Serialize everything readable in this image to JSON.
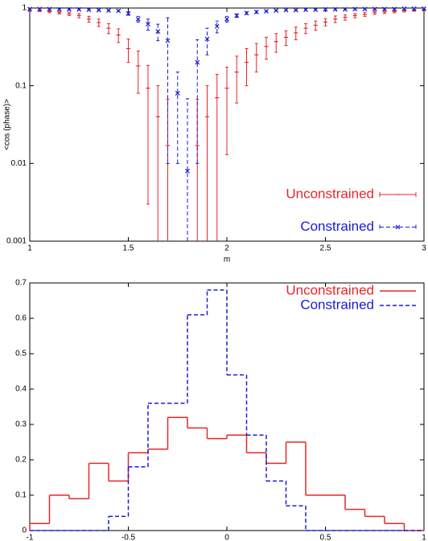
{
  "chart_data": [
    {
      "type": "errorbar",
      "log_y": true,
      "xlabel": "m",
      "ylabel": "<cos (phase)>",
      "x": [
        1.0,
        1.05,
        1.1,
        1.15,
        1.2,
        1.25,
        1.3,
        1.35,
        1.4,
        1.45,
        1.5,
        1.55,
        1.6,
        1.65,
        1.7,
        1.75,
        1.8,
        1.85,
        1.9,
        1.95,
        2.0,
        2.05,
        2.1,
        2.15,
        2.2,
        2.25,
        2.3,
        2.35,
        2.4,
        2.45,
        2.5,
        2.55,
        2.6,
        2.65,
        2.7,
        2.75,
        2.8,
        2.85,
        2.9,
        2.95,
        3.0
      ],
      "series": [
        {
          "name": "Unconstrained",
          "color": "#e8262a",
          "marker": "plus",
          "linestyle": "solid",
          "values": [
            0.93,
            0.92,
            0.9,
            0.87,
            0.84,
            0.8,
            0.72,
            0.65,
            0.55,
            0.45,
            0.3,
            0.18,
            0.093,
            0.04,
            0.017,
            null,
            null,
            0.017,
            0.04,
            0.07,
            0.093,
            0.15,
            0.2,
            0.25,
            0.32,
            0.37,
            0.42,
            0.48,
            0.55,
            0.6,
            0.66,
            0.72,
            0.76,
            0.8,
            0.83,
            0.87,
            0.89,
            0.9,
            0.92,
            0.93,
            0.94
          ],
          "errors": [
            0.02,
            0.02,
            0.03,
            0.03,
            0.04,
            0.05,
            0.06,
            0.07,
            0.08,
            0.09,
            0.1,
            0.1,
            0.09,
            0.06,
            0.05,
            null,
            null,
            0.05,
            0.06,
            0.07,
            0.08,
            0.09,
            0.1,
            0.1,
            0.1,
            0.1,
            0.09,
            0.09,
            0.08,
            0.08,
            0.07,
            0.07,
            0.06,
            0.05,
            0.05,
            0.04,
            0.04,
            0.03,
            0.03,
            0.02,
            0.02
          ]
        },
        {
          "name": "Constrained",
          "color": "#1a1ad6",
          "marker": "cross",
          "linestyle": "dashed",
          "values": [
            0.97,
            0.97,
            0.97,
            0.96,
            0.96,
            0.96,
            0.95,
            0.94,
            0.93,
            0.92,
            0.85,
            0.72,
            0.62,
            0.5,
            0.38,
            0.08,
            0.008,
            0.2,
            0.4,
            0.58,
            0.72,
            0.8,
            0.86,
            0.89,
            0.91,
            0.93,
            0.94,
            0.94,
            0.95,
            0.95,
            0.96,
            0.96,
            0.96,
            0.97,
            0.97,
            0.97,
            0.97,
            0.97,
            0.98,
            0.98,
            0.98
          ],
          "errors": [
            0.02,
            0.02,
            0.02,
            0.02,
            0.02,
            0.02,
            0.02,
            0.02,
            0.02,
            0.02,
            0.04,
            0.06,
            0.1,
            0.12,
            0.37,
            0.07,
            0.06,
            0.19,
            0.15,
            0.1,
            0.06,
            0.04,
            0.03,
            0.03,
            0.02,
            0.02,
            0.02,
            0.02,
            0.02,
            0.02,
            0.02,
            0.02,
            0.02,
            0.02,
            0.02,
            0.02,
            0.02,
            0.02,
            0.02,
            0.02,
            0.02
          ]
        }
      ],
      "xlim": [
        1,
        3
      ],
      "xticks": [
        1,
        1.5,
        2,
        2.5,
        3
      ],
      "ylim": [
        0.001,
        1
      ],
      "yticks": [
        0.001,
        0.01,
        0.1,
        1
      ],
      "legend": "lower right"
    },
    {
      "type": "histogram",
      "bins": [
        -1,
        -0.9,
        -0.8,
        -0.7,
        -0.6,
        -0.5,
        -0.4,
        -0.3,
        -0.2,
        -0.1,
        0,
        0.1,
        0.2,
        0.3,
        0.4,
        0.5,
        0.6,
        0.7,
        0.8,
        0.9,
        1
      ],
      "series": [
        {
          "name": "Unconstrained",
          "color": "#e8262a",
          "linestyle": "solid",
          "values": [
            0.02,
            0.1,
            0.09,
            0.19,
            0.14,
            0.22,
            0.23,
            0.32,
            0.29,
            0.26,
            0.27,
            0.22,
            0.19,
            0.25,
            0.1,
            0.1,
            0.06,
            0.04,
            0.02,
            0
          ]
        },
        {
          "name": "Constrained",
          "color": "#1a1ad6",
          "linestyle": "dashed",
          "values": [
            0,
            0,
            0,
            0,
            0.04,
            0.18,
            0.36,
            0.36,
            0.61,
            0.68,
            0.44,
            0.27,
            0.14,
            0.07,
            0,
            0,
            0,
            0,
            0,
            0
          ]
        }
      ],
      "xlim": [
        -1,
        1
      ],
      "xticks": [
        -1,
        -0.5,
        0,
        0.5,
        1
      ],
      "ylim": [
        0,
        0.7
      ],
      "yticks": [
        0,
        0.1,
        0.2,
        0.3,
        0.4,
        0.5,
        0.6,
        0.7
      ],
      "legend": "upper right"
    }
  ]
}
